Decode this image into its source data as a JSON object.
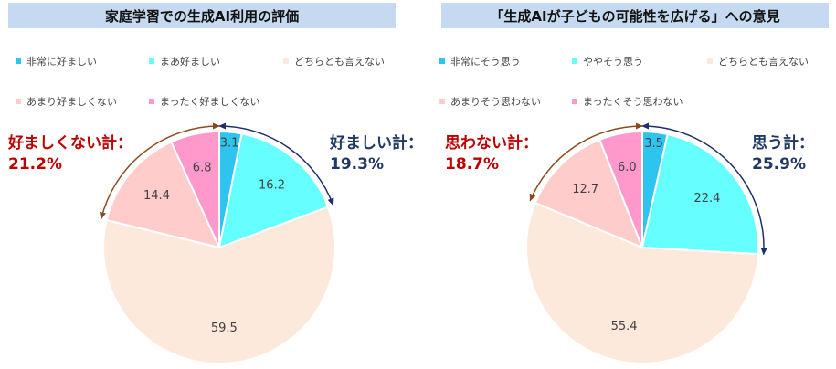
{
  "colors": {
    "cat1": "#2ec4f0",
    "cat2": "#66ffff",
    "cat3": "#fde9dc",
    "cat4": "#ffcccc",
    "cat5": "#ff99cc",
    "negative_total": "#c00000",
    "positive_total": "#1f3864",
    "arc_negative": "#8a4a1e",
    "arc_positive": "#1f2f6a"
  },
  "chart_data": [
    {
      "type": "pie",
      "title": "家庭学習での生成AI利用の評価",
      "categories": [
        "非常に好ましい",
        "まあ好ましい",
        "どちらとも言えない",
        "あまり好ましくない",
        "まったく好ましくない"
      ],
      "values": [
        3.1,
        16.2,
        59.5,
        14.4,
        6.8
      ],
      "start": "12 o'clock, clockwise",
      "totals": {
        "negative": {
          "label": "好ましくない計：",
          "value": "21.2%"
        },
        "positive": {
          "label": "好ましい計：",
          "value": "19.3%"
        }
      }
    },
    {
      "type": "pie",
      "title": "「生成AIが子どもの可能性を広げる」への意見",
      "categories": [
        "非常にそう思う",
        "ややそう思う",
        "どちらとも言えない",
        "あまりそう思わない",
        "まったくそう思わない"
      ],
      "values": [
        3.5,
        22.4,
        55.4,
        12.7,
        6.0
      ],
      "start": "12 o'clock, clockwise",
      "totals": {
        "negative": {
          "label": "思わない計：",
          "value": "18.7%"
        },
        "positive": {
          "label": "思う計：",
          "value": "25.9%"
        }
      }
    }
  ]
}
